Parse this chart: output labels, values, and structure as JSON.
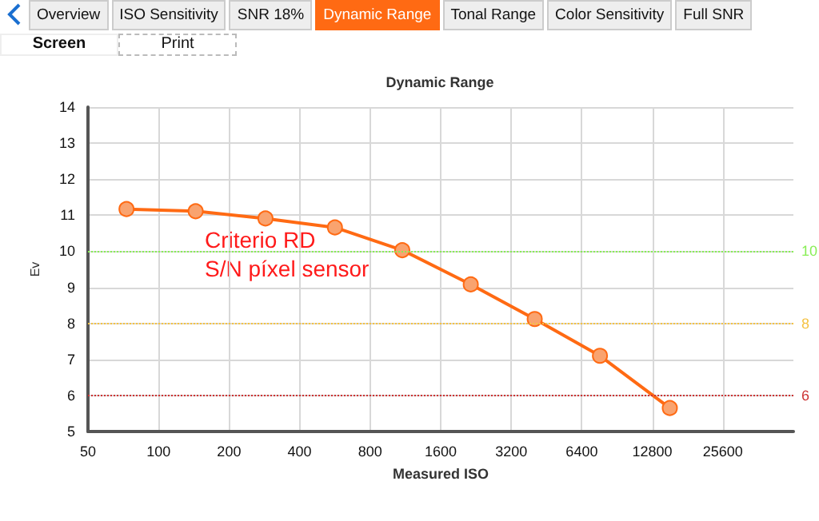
{
  "chart_data": {
    "type": "line",
    "title": "Dynamic Range",
    "xlabel": "Measured ISO",
    "ylabel": "Ev",
    "annotations": [
      "Overview",
      "ISO Sensitivity",
      "SNR 18%",
      "Dynamic Range",
      "Tonal Range",
      "Color Sensitivity",
      "Full SNR",
      "Screen",
      "Print",
      "Criterio RD",
      "S/N píxel sensor"
    ],
    "series": [
      {
        "color": "#ff6a13",
        "x": [
          73,
          144,
          286,
          566,
          1097,
          2150,
          4030,
          7650,
          15200
        ],
        "values": [
          11.17,
          11.11,
          10.91,
          10.66,
          10.03,
          9.08,
          8.12,
          7.1,
          5.65
        ]
      }
    ],
    "log": "x",
    "xlim": [
      50,
      51200
    ],
    "xticks": [
      50,
      100,
      200,
      400,
      800,
      1600,
      3200,
      6400,
      12800,
      25600
    ],
    "ylim": [
      5,
      14
    ],
    "yticks": [
      5,
      6,
      7,
      8,
      9,
      10,
      11,
      12,
      13,
      14
    ],
    "ref_lines": [
      {
        "axis": "y",
        "value": 10,
        "label": "10",
        "color": "#88ee55",
        "line_style": "dotted"
      },
      {
        "axis": "y",
        "value": 8,
        "label": "8",
        "color": "#f5c242",
        "line_style": "dotted"
      },
      {
        "axis": "y",
        "value": 6,
        "label": "6",
        "color": "#cc3333",
        "line_style": "dotted"
      }
    ],
    "grid": true,
    "marker": "circle",
    "line_style": "solid"
  }
}
